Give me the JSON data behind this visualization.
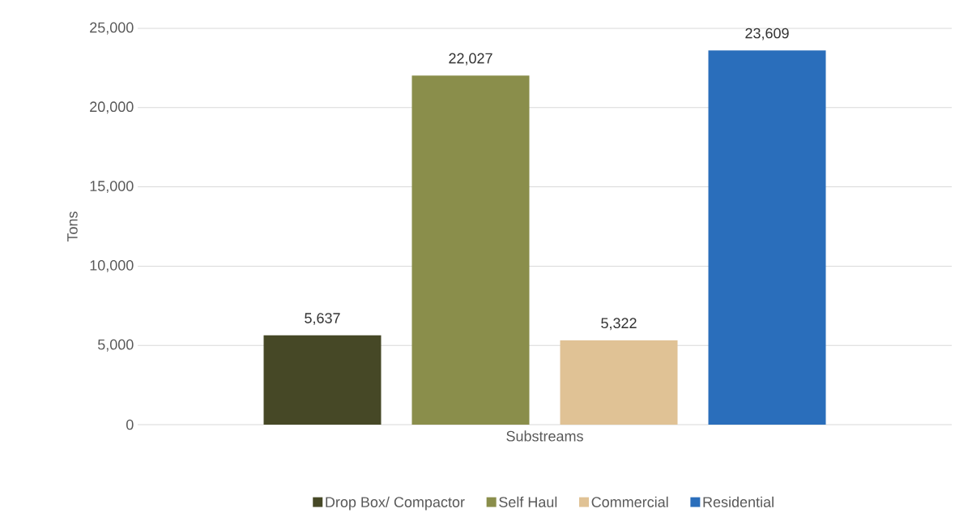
{
  "chart_data": {
    "type": "bar",
    "categories": [
      "Substreams"
    ],
    "ylabel": "Tons",
    "series": [
      {
        "name": "Drop Box/ Compactor",
        "color": "#464826",
        "values": [
          5637
        ],
        "value_labels": [
          "5,637"
        ]
      },
      {
        "name": "Self Haul",
        "color": "#8a8e4b",
        "values": [
          22027
        ],
        "value_labels": [
          "22,027"
        ]
      },
      {
        "name": "Commercial",
        "color": "#e0c295",
        "values": [
          5322
        ],
        "value_labels": [
          "5,322"
        ]
      },
      {
        "name": "Residential",
        "color": "#2a6ebb",
        "values": [
          23609
        ],
        "value_labels": [
          "23,609"
        ]
      }
    ],
    "ylim": [
      0,
      25000
    ],
    "yticks": [
      {
        "value": 0,
        "label": "0"
      },
      {
        "value": 5000,
        "label": "5,000"
      },
      {
        "value": 10000,
        "label": "10,000"
      },
      {
        "value": 15000,
        "label": "15,000"
      },
      {
        "value": 20000,
        "label": "20,000"
      },
      {
        "value": 25000,
        "label": "25,000"
      }
    ],
    "grid": "y",
    "legend": "bottom"
  }
}
